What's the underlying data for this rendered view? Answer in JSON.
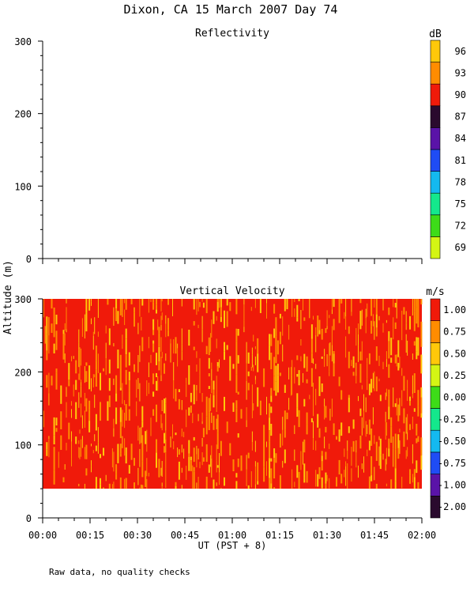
{
  "page_title": "Dixon, CA 15 March 2007  Day  74",
  "y_label": "Altitude (m)",
  "x_label": "UT  (PST + 8)",
  "x_ticks": [
    "00:00",
    "00:15",
    "00:30",
    "00:45",
    "01:00",
    "01:15",
    "01:30",
    "01:45",
    "02:00"
  ],
  "footnote": "Raw data, no quality checks",
  "chart_data": [
    {
      "type": "heatmap",
      "title": "Reflectivity",
      "xlabel": "UT  (PST + 8)",
      "ylabel": "Altitude (m)",
      "xlim": [
        "00:00",
        "02:00"
      ],
      "ylim": [
        0,
        300
      ],
      "y_ticks": [
        0,
        100,
        200,
        300
      ],
      "data": [],
      "colorbar": {
        "unit": "dB",
        "levels": [
          69,
          72,
          75,
          78,
          81,
          84,
          87,
          90,
          93,
          96
        ],
        "labels": [
          "69",
          "72",
          "75",
          "78",
          "81",
          "84",
          "87",
          "90",
          "93",
          "96"
        ],
        "colors": [
          "#d4f514",
          "#3ddc18",
          "#14e88c",
          "#14b9f0",
          "#1f4cf5",
          "#5a13a8",
          "#2a0a2e",
          "#f01a0a",
          "#ff8c00",
          "#ffc80a"
        ]
      }
    },
    {
      "type": "heatmap",
      "title": "Vertical Velocity",
      "xlabel": "UT  (PST + 8)",
      "ylabel": "Altitude (m)",
      "xlim": [
        "00:00",
        "02:00"
      ],
      "ylim": [
        0,
        300
      ],
      "y_ticks": [
        0,
        100,
        200,
        300
      ],
      "data_extent": {
        "altitude_m": [
          40,
          300
        ],
        "time": [
          "00:00",
          "02:00"
        ]
      },
      "dominant_values": [
        "1.00",
        "0.75",
        "0.50"
      ],
      "colorbar": {
        "unit": "m/s",
        "levels": [
          -2.0,
          -1.0,
          -0.75,
          -0.5,
          -0.25,
          0.0,
          0.25,
          0.5,
          0.75,
          1.0
        ],
        "labels": [
          "-2.00",
          "-1.00",
          "-0.75",
          "-0.50",
          "-0.25",
          "0.00",
          "0.25",
          "0.50",
          "0.75",
          "1.00"
        ],
        "colors": [
          "#2a0a2e",
          "#5a13a8",
          "#1f4cf5",
          "#14b9f0",
          "#14e88c",
          "#3ddc18",
          "#d4f514",
          "#ffc80a",
          "#ff8c00",
          "#f01a0a"
        ]
      }
    }
  ]
}
